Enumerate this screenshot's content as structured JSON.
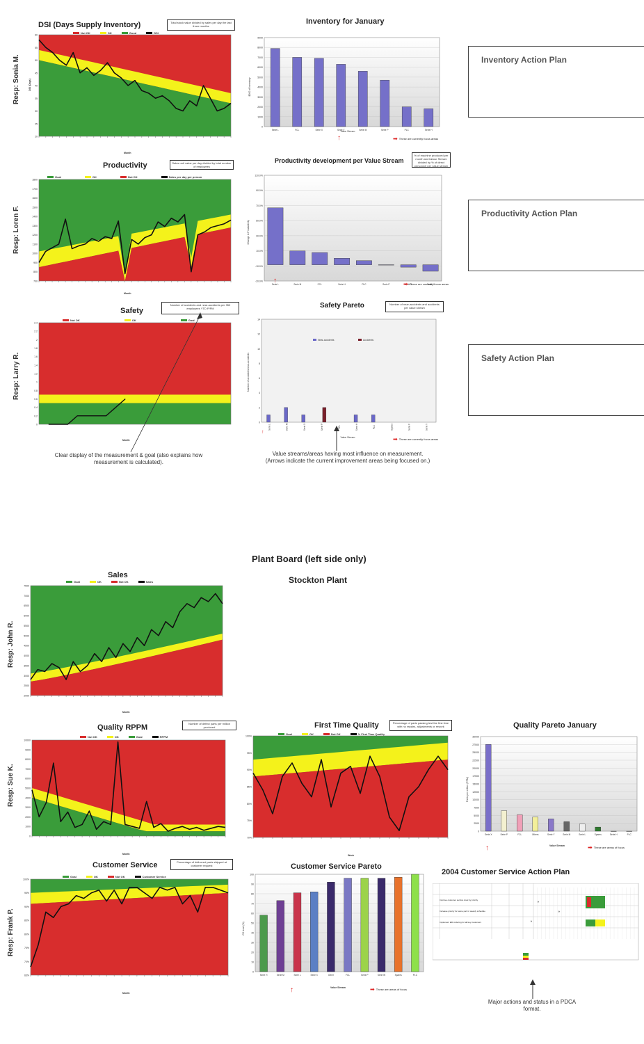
{
  "board_title": "Plant Board (left side only)",
  "plant_name": "Stockton Plant",
  "colors": {
    "red": "#d82d2d",
    "yellow": "#f4f21b",
    "green": "#3a9c3a",
    "purple": "#7570c9",
    "line": "#111111"
  },
  "dsi": {
    "title": "DSI (Days Supply Inventory)",
    "resp": "Resp: Sonia M.",
    "note": "Total stock value divided by sales per day the last three months",
    "legend": [
      "Not OK",
      "OK",
      "Good",
      "DSI"
    ],
    "ylabel": "DSI (Days)",
    "xlabel": "Month",
    "chart_data": {
      "type": "area",
      "ylim": [
        20,
        60
      ],
      "yticks": [
        "60",
        "55",
        "50",
        "45",
        "40",
        "35",
        "30",
        "25",
        "20"
      ],
      "series": [
        {
          "name": "DSI",
          "values": [
            58,
            55,
            53,
            50,
            48,
            53,
            45,
            47,
            44,
            46,
            49,
            45,
            43,
            40,
            42,
            38,
            37,
            35,
            36,
            34,
            31,
            30,
            34,
            32,
            40,
            35,
            30,
            31,
            33
          ]
        }
      ]
    }
  },
  "inventory": {
    "title": "Inventory for January",
    "ylabel": "$000 of Inventory",
    "xlabel": "Value Stream",
    "legend_note": "These are currently focus areas",
    "chart_data": {
      "type": "bar",
      "categories": [
        "Serie L",
        "FCL",
        "Serie X",
        "Serie Y",
        "Serie M",
        "Serie P",
        "PLC",
        "Serie H"
      ],
      "values": [
        7900,
        7000,
        6900,
        6300,
        5600,
        4700,
        2000,
        1800
      ],
      "ylim": [
        0,
        9000
      ],
      "yticks": [
        "9000",
        "8000",
        "7000",
        "6000",
        "5000",
        "4000",
        "3000",
        "2000",
        "1000",
        "0"
      ]
    }
  },
  "inventory_action": {
    "title": "Inventory Action Plan"
  },
  "productivity": {
    "title": "Productivity",
    "resp": "Resp: Loren F.",
    "note": "Sales unit value per day divided by total number of employees",
    "legend": [
      "Goal",
      "OK",
      "Not OK",
      "Sales per day per person"
    ],
    "ylabel": "Sales in USD per employee and work day",
    "xlabel": "Month",
    "chart_data": {
      "type": "area",
      "ylim": [
        700,
        1800
      ],
      "yticks": [
        "1800",
        "1700",
        "1600",
        "1500",
        "1400",
        "1300",
        "1200",
        "1100",
        "1000",
        "900",
        "800",
        "700"
      ],
      "series": [
        {
          "name": "Sales per day per person",
          "values": [
            900,
            1020,
            1060,
            1100,
            1370,
            1050,
            1080,
            1100,
            1160,
            1130,
            1180,
            1160,
            1350,
            780,
            1150,
            1100,
            1170,
            1200,
            1340,
            1290,
            1380,
            1340,
            1420,
            800,
            1200,
            1230,
            1280,
            1300,
            1320,
            1360
          ]
        }
      ]
    }
  },
  "prod_dev": {
    "title": "Productivity development per Value Stream",
    "note": "% of machine produced per month and labour Stream divided by % of direct personnel per value stream",
    "ylabel": "Change in Productivity",
    "legend_note": "These are currently focus areas",
    "chart_data": {
      "type": "bar",
      "categories": [
        "Serie L",
        "Serie M",
        "FCL",
        "Serie H",
        "PLC",
        "Serie P",
        "Serie X",
        "Serie Y"
      ],
      "values": [
        70,
        17,
        15,
        8,
        5,
        0,
        -3,
        -8
      ],
      "ylim": [
        -20,
        110
      ],
      "yticks": [
        "110.0%",
        "90.0%",
        "70.0%",
        "50.0%",
        "30.0%",
        "10.0%",
        "-10.0%",
        "-20.0%"
      ]
    }
  },
  "productivity_action": {
    "title": "Productivity Action Plan"
  },
  "safety": {
    "title": "Safety",
    "resp": "Resp: Larry R.",
    "note": "Number of accidents and near-accidents per 350 employees YTD P/PM",
    "legend": [
      "Not OK",
      "OK",
      "Goal"
    ],
    "ylabel": "Number of accidents",
    "xlabel": "Month",
    "chart_data": {
      "type": "line",
      "ylim": [
        0,
        2.4
      ],
      "yticks": [
        "2.4",
        "2.2",
        "2",
        "1.8",
        "1.6",
        "1.4",
        "1.2",
        "1",
        "0.8",
        "0.6",
        "0.4",
        "0.2",
        "0"
      ],
      "series": [
        {
          "name": "Accidents",
          "values": [
            0,
            0,
            0,
            0.2,
            0.2,
            0.2,
            0.2,
            0.4,
            0.6
          ]
        }
      ]
    }
  },
  "safety_pareto": {
    "title": "Safety Pareto",
    "note": "Number of near-accidents and accidents per value stream",
    "legend": [
      "Near-accidents",
      "Accidents"
    ],
    "ylabel": "Number of accidents/near-accidents",
    "xlabel": "Value Stream",
    "legend_note": "These are currently focus areas",
    "chart_data": {
      "type": "bar",
      "categories": [
        "Serie L",
        "Serie M",
        "Serie X",
        "Serie P",
        "FCL",
        "Serie H",
        "PLC",
        "Spares",
        "Serie F",
        "Serie Y"
      ],
      "series": [
        {
          "name": "Near-accidents",
          "values": [
            1,
            2,
            1,
            0,
            0,
            1,
            1,
            0,
            0,
            0
          ]
        },
        {
          "name": "Accidents",
          "values": [
            0,
            0,
            0,
            2,
            0,
            0,
            0,
            0,
            0,
            0
          ]
        }
      ],
      "ylim": [
        0,
        14
      ]
    }
  },
  "safety_action": {
    "title": "Safety Action Plan"
  },
  "caption1": "Clear display of the measurement & goal (also explains how measurement is calculated).",
  "caption2": "Value streams/areas having most influence on measurement. (Arrows indicate the current improvement areas being focused on.)",
  "sales": {
    "title": "Sales",
    "resp": "Resp: John R.",
    "legend": [
      "Goal",
      "OK",
      "Not OK",
      "Sales"
    ],
    "ylabel": "Sales in $000",
    "xlabel": "Month",
    "chart_data": {
      "type": "area",
      "ylim": [
        2000,
        7500
      ],
      "yticks": [
        "7500",
        "7000",
        "6500",
        "6000",
        "5500",
        "5000",
        "4500",
        "4000",
        "3500",
        "3000",
        "2500",
        "2000"
      ],
      "series": [
        {
          "name": "Sales",
          "values": [
            2800,
            3300,
            3200,
            3600,
            3400,
            2800,
            3700,
            3200,
            3500,
            4100,
            3700,
            4400,
            3900,
            4600,
            4200,
            4900,
            4500,
            5300,
            5000,
            5700,
            5400,
            6200,
            6600,
            6400,
            6900,
            6700,
            7100,
            6600
          ]
        }
      ]
    }
  },
  "quality": {
    "title": "Quality RPPM",
    "resp": "Resp: Sue K.",
    "note": "Number of defect parts per million produced",
    "legend": [
      "Not OK",
      "OK",
      "Goal",
      "RPPM"
    ],
    "ylabel": "Quality (RPPM)",
    "xlabel": "Month",
    "chart_data": {
      "type": "area",
      "ylim": [
        0,
        10000
      ],
      "yticks": [
        "10000",
        "9000",
        "8000",
        "7000",
        "6000",
        "5000",
        "4000",
        "3000",
        "2000",
        "1000",
        "0"
      ],
      "series": [
        {
          "name": "RPPM",
          "values": [
            4800,
            2000,
            3500,
            7600,
            1500,
            2500,
            900,
            1200,
            2600,
            700,
            1500,
            1200,
            9800,
            1200,
            1000,
            800,
            3600,
            900,
            1300,
            500,
            800,
            1000,
            700,
            900,
            600,
            800,
            1000,
            900
          ]
        }
      ]
    }
  },
  "ftq": {
    "title": "First Time Quality",
    "note": "Percentage of parts passing test the first time with no repairs, adjustments or rework",
    "legend": [
      "Goal",
      "OK",
      "Not OK",
      "% First Time Quality"
    ],
    "ylabel": "First time Quality",
    "xlabel": "Week",
    "chart_data": {
      "type": "area",
      "ylim": [
        70,
        100
      ],
      "yticks": [
        "100%",
        "95%",
        "90%",
        "85%",
        "80%",
        "75%",
        "70%"
      ],
      "series": [
        {
          "name": "% First Time Quality",
          "values": [
            89,
            84,
            77,
            88,
            92,
            86,
            82,
            93,
            79,
            89,
            91,
            83,
            94,
            88,
            76,
            72,
            82,
            85,
            90,
            94,
            90
          ]
        }
      ]
    }
  },
  "quality_pareto": {
    "title": "Quality Pareto January",
    "ylabel": "Parts per million (PPM)",
    "xlabel": "Value Stream",
    "legend_note": "These are areas of focus",
    "chart_data": {
      "type": "bar",
      "categories": [
        "Serie X",
        "Serie P",
        "FCL",
        "Others",
        "Serie Y",
        "Serie M",
        "Serie L",
        "Spares",
        "Serie H",
        "PLC"
      ],
      "values": [
        27500,
        6500,
        5200,
        4500,
        3900,
        3000,
        2300,
        1300,
        0,
        0
      ],
      "ylim": [
        0,
        30000
      ],
      "yticks": [
        "30000",
        "27500",
        "25000",
        "22500",
        "20000",
        "17500",
        "15000",
        "12500",
        "10000",
        "7500",
        "5000",
        "2500",
        "0"
      ]
    }
  },
  "customer_service": {
    "title": "Customer Service",
    "resp": "Resp: Frank P.",
    "note": "Percentage of delivered parts shipped at customer request",
    "legend": [
      "Goal",
      "OK",
      "Not OK",
      "Customer Service"
    ],
    "ylabel": "Customer Service by Quantity",
    "xlabel": "Month",
    "chart_data": {
      "type": "area",
      "ylim": [
        65,
        100
      ],
      "yticks": [
        "100%",
        "95%",
        "90%",
        "85%",
        "80%",
        "75%",
        "70%",
        "65%"
      ],
      "series": [
        {
          "name": "Customer Service",
          "values": [
            68,
            76,
            88,
            86,
            90,
            91,
            94,
            93,
            95,
            96,
            92,
            96,
            91,
            97,
            97,
            95,
            93,
            97,
            96,
            97,
            91,
            94,
            88,
            97,
            97,
            96,
            95
          ]
        }
      ]
    }
  },
  "cs_pareto": {
    "title": "Customer Service Pareto",
    "ylabel": "CS level (%)",
    "xlabel": "Value Stream",
    "legend_note": "These are areas of focus",
    "chart_data": {
      "type": "bar",
      "categories": [
        "Serie H",
        "Serie M",
        "Serie L",
        "Serie X",
        "Other",
        "FCL",
        "Serie P",
        "Serie W",
        "Spares",
        "PLC"
      ],
      "values": [
        58,
        73,
        81,
        82,
        92,
        96,
        96,
        96,
        97,
        100
      ],
      "bar_colors": [
        "#4c9a4c",
        "#6e3f93",
        "#c9344b",
        "#5b7fc4",
        "#3a2a6b",
        "#7a78c4",
        "#9cd34a",
        "#3a2a6b",
        "#e8722b",
        "#8ee04a"
      ],
      "ylim": [
        0,
        100
      ],
      "yticks": [
        "100",
        "90",
        "80",
        "70",
        "60",
        "50",
        "40",
        "30",
        "20",
        "10",
        "0"
      ]
    }
  },
  "cs_action": {
    "title": "2004 Customer Service Action Plan",
    "caption": "Major actions and status in a PDCA format.",
    "rows": [
      "Improve customer service level by priority",
      "Increase priority for same part in weekly schedule",
      "Implement EDI ordering for all key customers"
    ]
  }
}
